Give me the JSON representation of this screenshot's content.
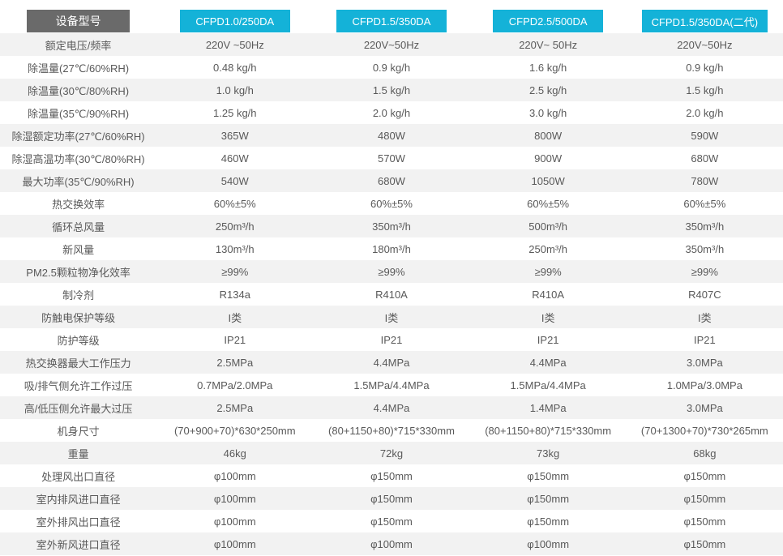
{
  "colors": {
    "accent_cyan": "#14b2d8",
    "header_dark_gray": "#6a6a6a",
    "row_alt_gray": "#f2f2f2",
    "text_gray": "#595959",
    "header_text": "#ffffff"
  },
  "chart_data": {
    "type": "table",
    "title": "",
    "corner_label": "设备型号",
    "models": [
      "CFPD1.0/250DA",
      "CFPD1.5/350DA",
      "CFPD2.5/500DA",
      "CFPD1.5/350DA(二代)"
    ],
    "rows": [
      {
        "label": "额定电压/频率",
        "values": [
          "220V ~50Hz",
          "220V~50Hz",
          "220V~ 50Hz",
          "220V~50Hz"
        ]
      },
      {
        "label": "除温量(27℃/60%RH)",
        "values": [
          "0.48 kg/h",
          "0.9 kg/h",
          "1.6 kg/h",
          "0.9 kg/h"
        ]
      },
      {
        "label": "除温量(30℃/80%RH)",
        "values": [
          "1.0 kg/h",
          "1.5 kg/h",
          "2.5 kg/h",
          "1.5 kg/h"
        ]
      },
      {
        "label": "除温量(35℃/90%RH)",
        "values": [
          "1.25 kg/h",
          "2.0 kg/h",
          "3.0 kg/h",
          "2.0 kg/h"
        ]
      },
      {
        "label": "除湿额定功率(27℃/60%RH)",
        "values": [
          "365W",
          "480W",
          "800W",
          "590W"
        ]
      },
      {
        "label": "除湿高温功率(30℃/80%RH)",
        "values": [
          "460W",
          "570W",
          "900W",
          "680W"
        ]
      },
      {
        "label": "最大功率(35℃/90%RH)",
        "values": [
          "540W",
          "680W",
          "1050W",
          "780W"
        ]
      },
      {
        "label": "热交换效率",
        "values": [
          "60%±5%",
          "60%±5%",
          "60%±5%",
          "60%±5%"
        ]
      },
      {
        "label": "循环总风量",
        "values": [
          "250m³/h",
          "350m³/h",
          "500m³/h",
          "350m³/h"
        ]
      },
      {
        "label": "新风量",
        "values": [
          "130m³/h",
          "180m³/h",
          "250m³/h",
          "350m³/h"
        ]
      },
      {
        "label": "PM2.5颗粒物净化效率",
        "values": [
          "≥99%",
          "≥99%",
          "≥99%",
          "≥99%"
        ]
      },
      {
        "label": "制冷剂",
        "values": [
          "R134a",
          "R410A",
          "R410A",
          "R407C"
        ]
      },
      {
        "label": "防触电保护等级",
        "values": [
          "I类",
          "I类",
          "I类",
          "I类"
        ]
      },
      {
        "label": "防护等级",
        "values": [
          "IP21",
          "IP21",
          "IP21",
          "IP21"
        ]
      },
      {
        "label": "热交换器最大工作压力",
        "values": [
          "2.5MPa",
          "4.4MPa",
          "4.4MPa",
          "3.0MPa"
        ]
      },
      {
        "label": "吸/排气侧允许工作过压",
        "values": [
          "0.7MPa/2.0MPa",
          "1.5MPa/4.4MPa",
          "1.5MPa/4.4MPa",
          "1.0MPa/3.0MPa"
        ]
      },
      {
        "label": "高/低压侧允许最大过压",
        "values": [
          "2.5MPa",
          "4.4MPa",
          "1.4MPa",
          "3.0MPa"
        ]
      },
      {
        "label": "机身尺寸",
        "values": [
          "(70+900+70)*630*250mm",
          "(80+1150+80)*715*330mm",
          "(80+1150+80)*715*330mm",
          "(70+1300+70)*730*265mm"
        ]
      },
      {
        "label": "重量",
        "values": [
          "46kg",
          "72kg",
          "73kg",
          "68kg"
        ]
      },
      {
        "label": "处理风出口直径",
        "values": [
          "φ100mm",
          "φ150mm",
          "φ150mm",
          "φ150mm"
        ]
      },
      {
        "label": "室内排风进口直径",
        "values": [
          "φ100mm",
          "φ150mm",
          "φ150mm",
          "φ150mm"
        ]
      },
      {
        "label": "室外排风出口直径",
        "values": [
          "φ100mm",
          "φ150mm",
          "φ150mm",
          "φ150mm"
        ]
      },
      {
        "label": "室外新风进口直径",
        "values": [
          "φ100mm",
          "φ100mm",
          "φ100mm",
          "φ150mm"
        ]
      }
    ]
  }
}
